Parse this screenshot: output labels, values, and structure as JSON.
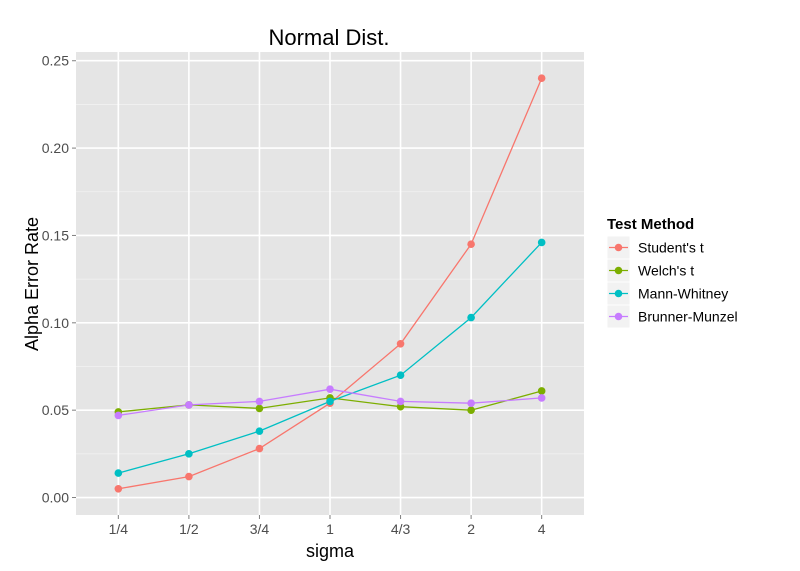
{
  "chart_data": {
    "type": "line",
    "title": "Normal Dist.",
    "xlabel": "sigma",
    "ylabel": "Alpha Error Rate",
    "categories": [
      "1/4",
      "1/2",
      "3/4",
      "1",
      "4/3",
      "2",
      "4"
    ],
    "ylim": [
      -0.01,
      0.255
    ],
    "yticks": [
      "0.00",
      "0.05",
      "0.10",
      "0.15",
      "0.20",
      "0.25"
    ],
    "grid": true,
    "legend": {
      "title": "Test Method",
      "position": "right"
    },
    "series": [
      {
        "name": "Student's t",
        "color": "#F8766D",
        "values": [
          0.005,
          0.012,
          0.028,
          0.054,
          0.088,
          0.145,
          0.24
        ]
      },
      {
        "name": "Welch's t",
        "color": "#7CAE00",
        "values": [
          0.049,
          0.053,
          0.051,
          0.057,
          0.052,
          0.05,
          0.061
        ]
      },
      {
        "name": "Mann-Whitney",
        "color": "#00BFC4",
        "values": [
          0.014,
          0.025,
          0.038,
          0.055,
          0.07,
          0.103,
          0.146
        ]
      },
      {
        "name": "Brunner-Munzel",
        "color": "#C77CFF",
        "values": [
          0.047,
          0.053,
          0.055,
          0.062,
          0.055,
          0.054,
          0.057
        ]
      }
    ]
  }
}
